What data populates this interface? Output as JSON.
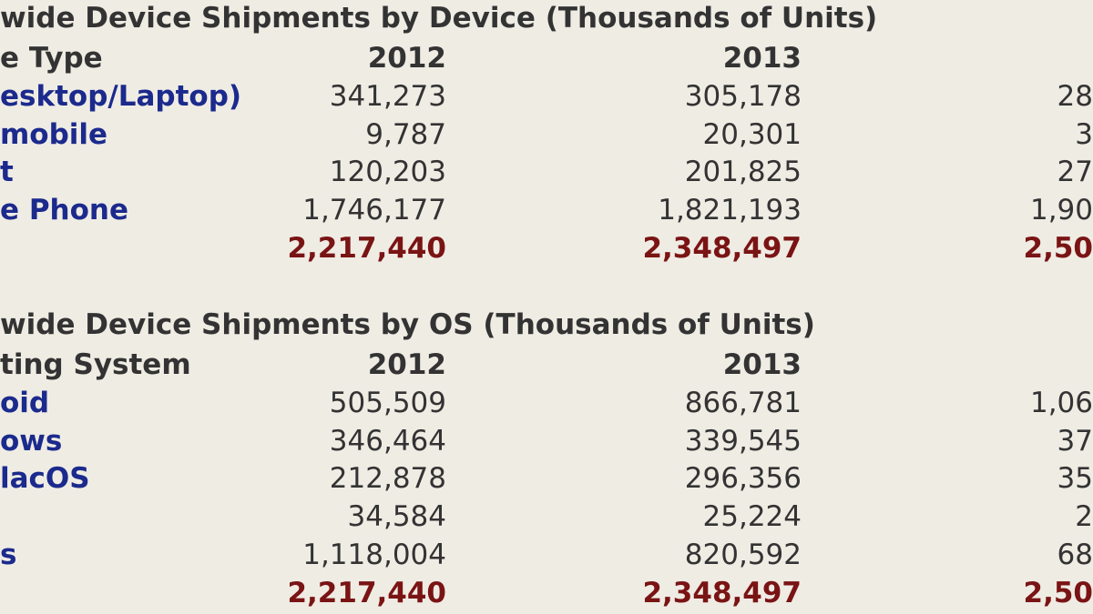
{
  "tables": [
    {
      "title": "wide Device Shipments by Device (Thousands of Units)",
      "header": [
        "e Type",
        "2012",
        "2013"
      ],
      "rows": [
        [
          "esktop/Laptop)",
          "341,273",
          "305,178",
          "28"
        ],
        [
          "mobile",
          "9,787",
          "20,301",
          "3"
        ],
        [
          "t",
          "120,203",
          "201,825",
          "27"
        ],
        [
          "e Phone",
          "1,746,177",
          "1,821,193",
          "1,90"
        ]
      ],
      "total": [
        "2,217,440",
        "2,348,497",
        "2,50"
      ]
    },
    {
      "title": "wide Device Shipments by OS (Thousands of Units)",
      "header": [
        "ting System",
        "2012",
        "2013"
      ],
      "rows": [
        [
          "oid",
          "505,509",
          "866,781",
          "1,06"
        ],
        [
          "ows",
          "346,464",
          "339,545",
          "37"
        ],
        [
          "lacOS",
          "212,878",
          "296,356",
          "35"
        ],
        [
          null,
          "34,584",
          "25,224",
          "2"
        ],
        [
          "s",
          "1,118,004",
          "820,592",
          "68"
        ]
      ],
      "total": [
        "2,217,440",
        "2,348,497",
        "2,50"
      ]
    }
  ]
}
